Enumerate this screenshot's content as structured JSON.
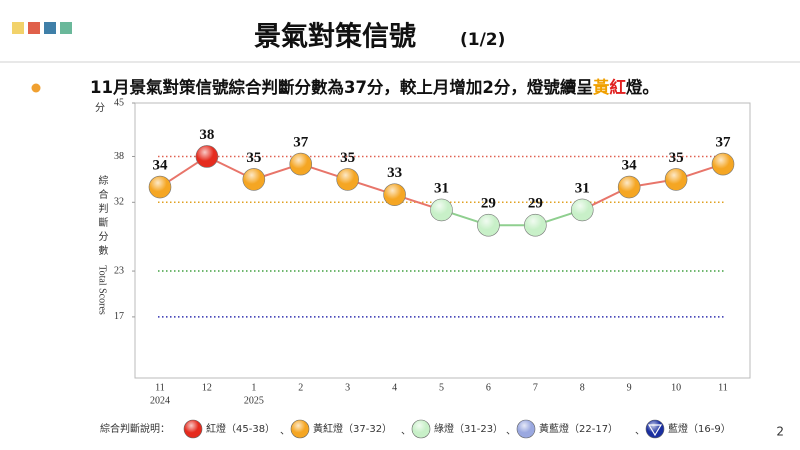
{
  "header": {
    "title": "景氣對策信號",
    "subtitle": "(1/2)"
  },
  "bullet": {
    "text": "11月景氣對策信號綜合判斷分數為37分，較上月增加2分，燈號續呈",
    "highlights": [
      {
        "text": "黃",
        "color": "#f0a000"
      },
      {
        "text": "紅",
        "color": "#e02020"
      }
    ],
    "end": "燈。"
  },
  "page_number": "2",
  "chart_data": {
    "type": "line",
    "y_unit": "分",
    "y_label": "綜合判斷分數",
    "y_label_en": "Total Scores",
    "categories": [
      "11",
      "12",
      "1",
      "2",
      "3",
      "4",
      "5",
      "6",
      "7",
      "8",
      "9",
      "10",
      "11"
    ],
    "x_sublabels": [
      "2024",
      null,
      "2025",
      null,
      null,
      null,
      null,
      null,
      null,
      null,
      null,
      null,
      null
    ],
    "values": [
      34,
      38,
      35,
      37,
      35,
      33,
      31,
      29,
      29,
      31,
      34,
      35,
      37
    ],
    "point_colors": [
      "#f5a623",
      "#e52b1e",
      "#f5a623",
      "#f5a623",
      "#f5a623",
      "#f5a623",
      "#c8f0c8",
      "#c8f0c8",
      "#c8f0c8",
      "#c8f0c8",
      "#f5a623",
      "#f5a623",
      "#f5a623"
    ],
    "segment_colors": [
      "#e8756a",
      "#e8756a",
      "#e8756a",
      "#e8756a",
      "#e8756a",
      "#e8756a",
      "#8fcf8f",
      "#8fcf8f",
      "#8fcf8f",
      "#e8756a",
      "#e8756a",
      "#e8756a"
    ],
    "ylim": [
      9,
      45
    ],
    "yticks": [
      17,
      23,
      32,
      38,
      45
    ],
    "reference_lines": [
      {
        "value": 38,
        "color": "#e06050"
      },
      {
        "value": 32,
        "color": "#e0a020"
      },
      {
        "value": 23,
        "color": "#40a040"
      },
      {
        "value": 17,
        "color": "#3030b0"
      }
    ],
    "legend": {
      "title": "綜合判斷說明：",
      "separator": "、",
      "items": [
        {
          "label": "紅燈（45-38）",
          "color": "#e52b1e"
        },
        {
          "label": "黃紅燈（37-32）",
          "color": "#f5a623"
        },
        {
          "label": "綠燈（31-23）",
          "color": "#c8f0c8"
        },
        {
          "label": "黃藍燈（22-17）",
          "color": "#9aa8e0"
        },
        {
          "label": "藍燈（16-9）",
          "color": "#1a2fa0"
        }
      ]
    }
  }
}
